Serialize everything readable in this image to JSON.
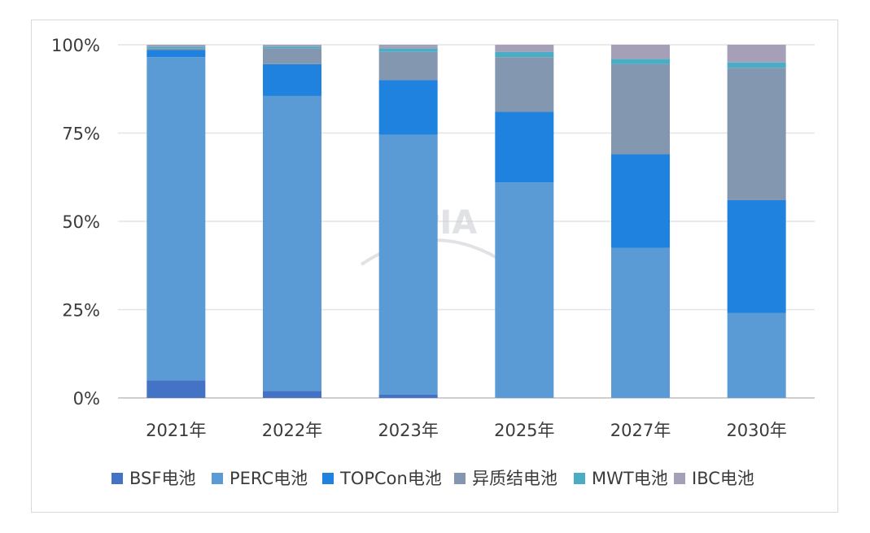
{
  "chart_data": {
    "type": "bar",
    "stacked": true,
    "categories": [
      "2021年",
      "2022年",
      "2023年",
      "2025年",
      "2027年",
      "2030年"
    ],
    "series": [
      {
        "name": "BSF电池",
        "color": "#4472c4",
        "values": [
          5,
          2,
          1,
          0,
          0,
          0
        ]
      },
      {
        "name": "PERC电池",
        "color": "#5b9bd5",
        "values": [
          91.5,
          83.5,
          73.5,
          61,
          42.5,
          24
        ]
      },
      {
        "name": "TOPCon电池",
        "color": "#1f82de",
        "values": [
          2,
          9,
          15.5,
          20,
          26.5,
          32
        ]
      },
      {
        "name": "异质结电池",
        "color": "#8497b0",
        "values": [
          0.5,
          4.5,
          8,
          15.5,
          25.5,
          37.5
        ]
      },
      {
        "name": "MWT电池",
        "color": "#4bacc6",
        "values": [
          0.5,
          0.5,
          1,
          1.5,
          1.5,
          1.5
        ]
      },
      {
        "name": "IBC电池",
        "color": "#a5a0b8",
        "values": [
          0.5,
          0.5,
          1,
          2,
          4,
          5
        ]
      }
    ],
    "y_ticks": [
      "0%",
      "25%",
      "50%",
      "75%",
      "100%"
    ],
    "y_tick_values": [
      0,
      25,
      50,
      75,
      100
    ],
    "ylim": [
      0,
      100
    ],
    "grid": true,
    "legend_position": "bottom",
    "watermark": "CPIA"
  }
}
